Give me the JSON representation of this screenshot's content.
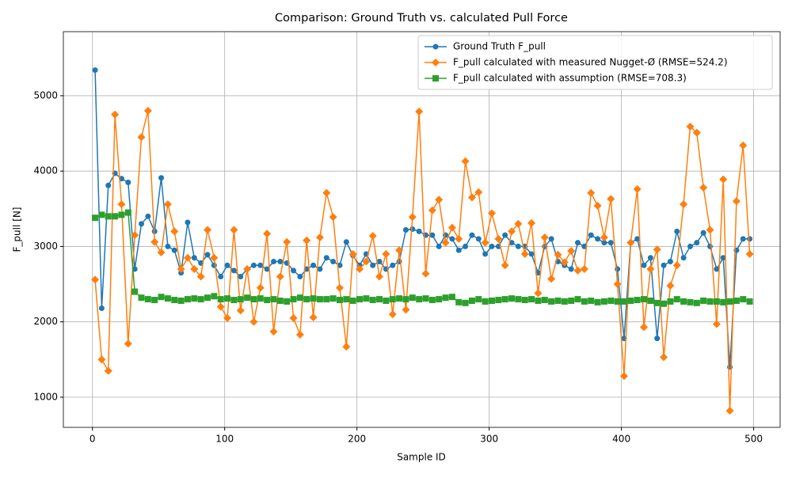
{
  "chart_data": {
    "type": "line",
    "title": "Comparison: Ground Truth vs. calculated Pull Force",
    "x_label": "Sample ID",
    "y_label": "F_pull [N]",
    "x": [
      2,
      7,
      12,
      17,
      22,
      27,
      32,
      37,
      42,
      47,
      52,
      57,
      62,
      67,
      72,
      77,
      82,
      87,
      92,
      97,
      102,
      107,
      112,
      117,
      122,
      127,
      132,
      137,
      142,
      147,
      152,
      157,
      162,
      167,
      172,
      177,
      182,
      187,
      192,
      197,
      202,
      207,
      212,
      217,
      222,
      227,
      232,
      237,
      242,
      247,
      252,
      257,
      262,
      267,
      272,
      277,
      282,
      287,
      292,
      297,
      302,
      307,
      312,
      317,
      322,
      327,
      332,
      337,
      342,
      347,
      352,
      357,
      362,
      367,
      372,
      377,
      382,
      387,
      392,
      397,
      402,
      407,
      412,
      417,
      422,
      427,
      432,
      437,
      442,
      447,
      452,
      457,
      462,
      467,
      472,
      477,
      482,
      487,
      492,
      497
    ],
    "series": [
      {
        "name": "Ground Truth F_pull",
        "color": "#1f77b4",
        "marker": "circle",
        "values": [
          5340,
          2180,
          3810,
          3970,
          3900,
          3850,
          2700,
          3300,
          3400,
          3200,
          3910,
          3000,
          2950,
          2650,
          3320,
          2850,
          2780,
          2890,
          2750,
          2600,
          2750,
          2680,
          2600,
          2700,
          2750,
          2750,
          2700,
          2800,
          2800,
          2780,
          2680,
          2600,
          2700,
          2750,
          2700,
          2850,
          2800,
          2750,
          3060,
          2880,
          2750,
          2900,
          2750,
          2800,
          2700,
          2750,
          2800,
          3220,
          3230,
          3200,
          3150,
          3150,
          3000,
          3150,
          3100,
          2950,
          3000,
          3150,
          3100,
          2900,
          3000,
          3000,
          3150,
          3050,
          3000,
          3000,
          2900,
          2650,
          3000,
          3100,
          2800,
          2750,
          2700,
          3050,
          3000,
          3150,
          3100,
          3050,
          3050,
          2700,
          1780,
          3050,
          3100,
          2750,
          2850,
          1780,
          2750,
          2800,
          3200,
          2850,
          3000,
          3050,
          3180,
          3000,
          2700,
          2850,
          1400,
          2950,
          3100,
          3100
        ]
      },
      {
        "name": "F_pull calculated with measured Nugget-Ø (RMSE=524.2)",
        "color": "#ff7f0e",
        "marker": "diamond",
        "values": [
          2560,
          1500,
          1350,
          4750,
          3560,
          1710,
          3150,
          4450,
          4800,
          3060,
          2920,
          3560,
          3200,
          2700,
          2850,
          2700,
          2600,
          3220,
          2850,
          2200,
          2050,
          3220,
          2150,
          2700,
          2000,
          2450,
          3170,
          1870,
          2600,
          3060,
          2050,
          1830,
          3080,
          2060,
          3120,
          3710,
          3390,
          2450,
          1670,
          2900,
          2700,
          2800,
          3140,
          2600,
          2900,
          2100,
          2950,
          2160,
          3390,
          4790,
          2640,
          3480,
          3620,
          3050,
          3250,
          3100,
          4130,
          3650,
          3720,
          3050,
          3440,
          3100,
          2750,
          3200,
          3300,
          2900,
          3310,
          2380,
          3120,
          2570,
          2890,
          2790,
          2940,
          2680,
          2700,
          3710,
          3540,
          3120,
          3630,
          2500,
          1280,
          3050,
          3760,
          1930,
          2700,
          2960,
          1530,
          2480,
          2750,
          3560,
          4590,
          4510,
          3780,
          3220,
          1970,
          3890,
          820,
          3600,
          4340,
          2900
        ]
      },
      {
        "name": "F_pull calculated with assumption (RMSE=708.3)",
        "color": "#2ca02c",
        "marker": "square",
        "values": [
          3380,
          3420,
          3400,
          3400,
          3420,
          3450,
          2400,
          2320,
          2300,
          2290,
          2330,
          2310,
          2290,
          2280,
          2300,
          2310,
          2300,
          2320,
          2340,
          2300,
          2310,
          2290,
          2300,
          2320,
          2300,
          2310,
          2290,
          2300,
          2280,
          2270,
          2300,
          2320,
          2300,
          2310,
          2300,
          2300,
          2310,
          2290,
          2300,
          2280,
          2300,
          2310,
          2290,
          2300,
          2280,
          2300,
          2310,
          2300,
          2320,
          2300,
          2310,
          2290,
          2300,
          2320,
          2330,
          2260,
          2250,
          2280,
          2300,
          2270,
          2280,
          2290,
          2300,
          2310,
          2300,
          2290,
          2300,
          2280,
          2290,
          2270,
          2280,
          2270,
          2280,
          2300,
          2270,
          2280,
          2260,
          2270,
          2280,
          2270,
          2270,
          2280,
          2290,
          2300,
          2280,
          2250,
          2240,
          2270,
          2300,
          2270,
          2260,
          2250,
          2280,
          2270,
          2270,
          2260,
          2270,
          2280,
          2300,
          2270
        ]
      }
    ],
    "xlim": [
      -22,
      520
    ],
    "ylim": [
      600,
      5850
    ],
    "xticks": [
      0,
      100,
      200,
      300,
      400,
      500
    ],
    "yticks": [
      1000,
      2000,
      3000,
      4000,
      5000
    ],
    "grid": true,
    "legend": "upper right"
  }
}
